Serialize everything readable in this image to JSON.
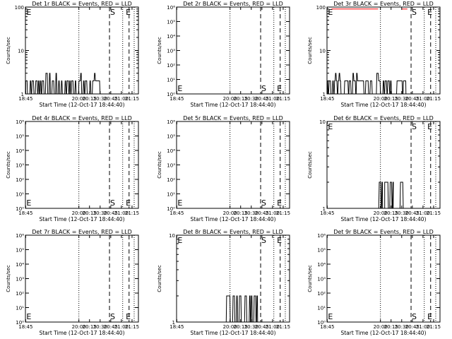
{
  "figure": {
    "ylabel": "Counts/sec",
    "xlabel": "Start Time (12-Oct-17 18:44:40)",
    "xtick_labels": [
      "18:45",
      "20:00",
      "20:15",
      "20:30",
      "20:45",
      "21:00",
      "21:15"
    ],
    "colors": {
      "events": "#000000",
      "lld": "#ff0000",
      "background": "#ffffff"
    }
  },
  "chart_data": [
    {
      "id": "1r",
      "type": "line",
      "title": "Det 1r BLACK = Events, RED = LLD",
      "yscale": "log",
      "ylim": [
        1,
        100
      ],
      "ytick_labels": [
        "1",
        "10",
        "100"
      ],
      "markers": [
        {
          "label": "E",
          "t": 18.75
        },
        {
          "label": "S",
          "t": 20.72
        },
        {
          "label": "E",
          "t": 21.07
        }
      ],
      "dotted_lines": [
        20.0,
        21.03,
        21.3
      ],
      "dashed_lines": [
        20.72,
        21.18
      ],
      "events": {
        "activity": [
          [
            18.75,
            20.6
          ]
        ],
        "base": 1,
        "low": 2,
        "high": 3
      },
      "lld": []
    },
    {
      "id": "2r",
      "type": "line",
      "title": "Det 2r BLACK = Events, RED = LLD",
      "yscale": "log",
      "ylim": [
        1,
        1000000
      ],
      "ytick_labels": [
        "10⁰",
        "10¹",
        "10²",
        "10³",
        "10⁴",
        "10⁵",
        "10⁶"
      ],
      "markers": [
        {
          "label": "E",
          "t": 18.75
        },
        {
          "label": "S",
          "t": 20.72
        },
        {
          "label": "E",
          "t": 21.07
        }
      ],
      "dotted_lines": [
        20.0,
        21.03,
        21.3
      ],
      "dashed_lines": [
        20.72,
        21.18
      ],
      "events": null,
      "lld": []
    },
    {
      "id": "3r",
      "type": "line",
      "title": "Det 3r BLACK = Events, RED = LLD",
      "yscale": "log",
      "ylim": [
        1,
        100
      ],
      "ytick_labels": [
        "1",
        "10",
        "100"
      ],
      "markers": [
        {
          "label": "E",
          "t": 18.75
        },
        {
          "label": "S",
          "t": 20.72
        },
        {
          "label": "E",
          "t": 21.07
        }
      ],
      "dotted_lines": [
        20.0,
        21.03,
        21.3
      ],
      "dashed_lines": [
        20.72,
        21.18
      ],
      "events": {
        "activity": [
          [
            18.75,
            20.6
          ]
        ],
        "base": 1,
        "low": 2,
        "high": 3
      },
      "lld": [
        [
          18.85,
          19.95,
          90
        ],
        [
          20.5,
          20.65,
          90
        ]
      ]
    },
    {
      "id": "4r",
      "type": "line",
      "title": "Det 4r BLACK = Events, RED = LLD",
      "yscale": "log",
      "ylim": [
        1,
        1000000
      ],
      "ytick_labels": [
        "10⁰",
        "10¹",
        "10²",
        "10³",
        "10⁴",
        "10⁵",
        "10⁶"
      ],
      "markers": [
        {
          "label": "E",
          "t": 18.75
        },
        {
          "label": "S",
          "t": 20.72
        },
        {
          "label": "E",
          "t": 21.07
        }
      ],
      "dotted_lines": [
        20.0,
        21.03,
        21.3
      ],
      "dashed_lines": [
        20.72,
        21.18
      ],
      "events": null,
      "lld": []
    },
    {
      "id": "5r",
      "type": "line",
      "title": "Det 5r BLACK = Events, RED = LLD",
      "yscale": "log",
      "ylim": [
        1,
        1000000
      ],
      "ytick_labels": [
        "10⁰",
        "10¹",
        "10²",
        "10³",
        "10⁴",
        "10⁵",
        "10⁶"
      ],
      "markers": [
        {
          "label": "E",
          "t": 18.75
        },
        {
          "label": "S",
          "t": 20.72
        },
        {
          "label": "E",
          "t": 21.07
        }
      ],
      "dotted_lines": [
        20.0,
        21.03,
        21.3
      ],
      "dashed_lines": [
        20.72,
        21.18
      ],
      "events": null,
      "lld": []
    },
    {
      "id": "6r",
      "type": "line",
      "title": "Det 6r BLACK = Events, RED = LLD",
      "yscale": "log",
      "ylim": [
        1,
        10
      ],
      "ytick_labels": [
        "1",
        "10"
      ],
      "markers": [
        {
          "label": "E",
          "t": 18.75
        },
        {
          "label": "S",
          "t": 20.72
        },
        {
          "label": "E",
          "t": 21.07
        }
      ],
      "dotted_lines": [
        20.0,
        21.03,
        21.3
      ],
      "dashed_lines": [
        20.72,
        21.18
      ],
      "events": {
        "activity": [
          [
            19.95,
            20.05
          ],
          [
            20.1,
            20.3
          ],
          [
            20.45,
            20.55
          ]
        ],
        "base": 1,
        "low": 2,
        "high": 2
      },
      "lld": []
    },
    {
      "id": "7r",
      "type": "line",
      "title": "Det 7r BLACK = Events, RED = LLD",
      "yscale": "log",
      "ylim": [
        1,
        1000000
      ],
      "ytick_labels": [
        "10⁰",
        "10¹",
        "10²",
        "10³",
        "10⁴",
        "10⁵",
        "10⁶"
      ],
      "markers": [
        {
          "label": "E",
          "t": 18.75
        },
        {
          "label": "S",
          "t": 20.72
        },
        {
          "label": "E",
          "t": 21.07
        }
      ],
      "dotted_lines": [
        20.0,
        21.03,
        21.3
      ],
      "dashed_lines": [
        20.72,
        21.18
      ],
      "events": null,
      "lld": []
    },
    {
      "id": "8r",
      "type": "line",
      "title": "Det 8r BLACK = Events, RED = LLD",
      "yscale": "log",
      "ylim": [
        1,
        10
      ],
      "ytick_labels": [
        "1",
        "10"
      ],
      "markers": [
        {
          "label": "E",
          "t": 18.75
        },
        {
          "label": "S",
          "t": 20.72
        },
        {
          "label": "E",
          "t": 21.07
        }
      ],
      "dotted_lines": [
        20.0,
        21.03,
        21.3
      ],
      "dashed_lines": [
        20.72,
        21.18
      ],
      "events": {
        "activity": [
          [
            19.9,
            20.65
          ]
        ],
        "base": 1,
        "low": 2,
        "high": 2
      },
      "lld": []
    },
    {
      "id": "9r",
      "type": "line",
      "title": "Det 9r BLACK = Events, RED = LLD",
      "yscale": "log",
      "ylim": [
        1,
        1000000
      ],
      "ytick_labels": [
        "10⁰",
        "10¹",
        "10²",
        "10³",
        "10⁴",
        "10⁵",
        "10⁶"
      ],
      "markers": [
        {
          "label": "E",
          "t": 18.75
        },
        {
          "label": "S",
          "t": 20.72
        },
        {
          "label": "E",
          "t": 21.07
        }
      ],
      "dotted_lines": [
        20.0,
        21.03,
        21.3
      ],
      "dashed_lines": [
        20.72,
        21.18
      ],
      "events": null,
      "lld": []
    }
  ]
}
